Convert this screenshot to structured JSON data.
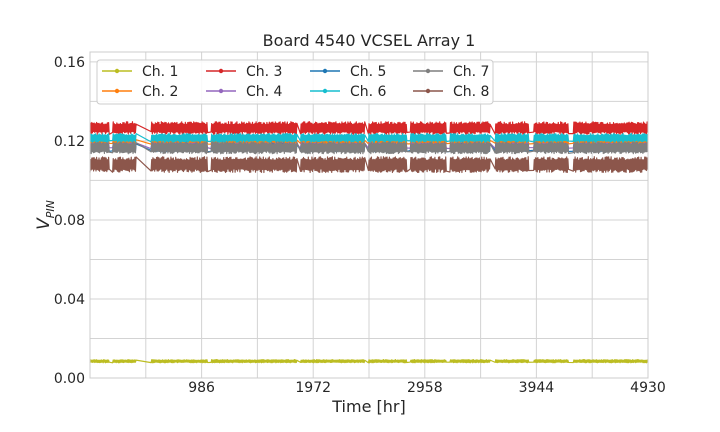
{
  "chart_data": {
    "type": "line",
    "title": "Board 4540 VCSEL Array 1",
    "xlabel": "Time [hr]",
    "ylabel": {
      "base": "V",
      "subscript": "PIN"
    },
    "xlim": [
      0,
      4930
    ],
    "ylim": [
      0.0,
      0.165
    ],
    "x_ticks": [
      986,
      1972,
      2958,
      3944,
      4930
    ],
    "x_tick_labels": [
      "986",
      "1972",
      "2958",
      "3944",
      "4930"
    ],
    "x_minor_gridlines": [
      493,
      1479,
      2465,
      3451,
      4437
    ],
    "y_ticks": [
      0.0,
      0.04,
      0.08,
      0.12,
      0.16
    ],
    "y_tick_labels": [
      "0.00",
      "0.04",
      "0.08",
      "0.12",
      "0.16"
    ],
    "y_minor_gridlines": [
      0.02,
      0.06,
      0.1,
      0.14
    ],
    "grid": true,
    "legend": {
      "placement": "top-left",
      "columns": 4
    },
    "segments": [
      [
        0,
        170
      ],
      [
        200,
        410
      ],
      [
        540,
        1040
      ],
      [
        1070,
        1830
      ],
      [
        1860,
        2430
      ],
      [
        2460,
        2800
      ],
      [
        2830,
        3150
      ],
      [
        3180,
        3540
      ],
      [
        3580,
        3880
      ],
      [
        3920,
        4230
      ],
      [
        4270,
        4930
      ]
    ],
    "series": [
      {
        "name": "Ch. 1",
        "color": "#bcbd22",
        "mean": 0.0085,
        "spread": 0.0008
      },
      {
        "name": "Ch. 2",
        "color": "#ff7f0e",
        "mean": 0.1195,
        "spread": 0.0012
      },
      {
        "name": "Ch. 3",
        "color": "#d62728",
        "mean": 0.1265,
        "spread": 0.0032
      },
      {
        "name": "Ch. 4",
        "color": "#9467bd",
        "mean": 0.1175,
        "spread": 0.0015
      },
      {
        "name": "Ch. 5",
        "color": "#1f77b4",
        "mean": 0.1165,
        "spread": 0.002
      },
      {
        "name": "Ch. 6",
        "color": "#17becf",
        "mean": 0.1215,
        "spread": 0.0022
      },
      {
        "name": "Ch. 7",
        "color": "#7f7f7f",
        "mean": 0.1165,
        "spread": 0.003
      },
      {
        "name": "Ch. 8",
        "color": "#8c564b",
        "mean": 0.108,
        "spread": 0.004
      }
    ]
  }
}
